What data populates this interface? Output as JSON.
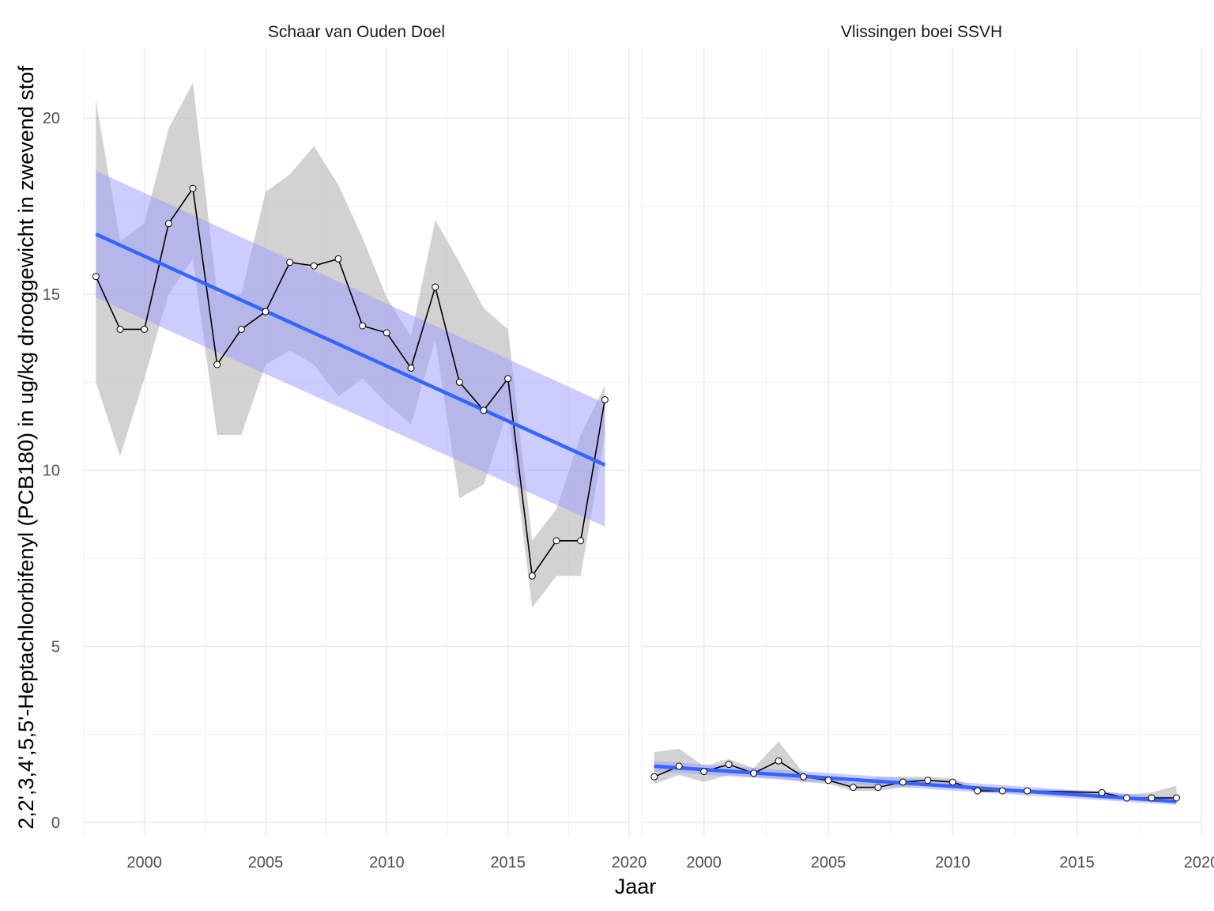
{
  "chart_data": {
    "type": "line",
    "xlabel": "Jaar",
    "ylabel": "2,2',3,4',5,5'-Heptachloorbifenyl (PCB180) in ug/kg drooggewicht in zwevend stof",
    "xlim": [
      1997.5,
      2020
    ],
    "ylim": [
      -0.4,
      22
    ],
    "x_ticks": [
      2000,
      2005,
      2010,
      2015,
      2020
    ],
    "y_ticks": [
      0,
      5,
      10,
      15,
      20
    ],
    "grid": true,
    "colors": {
      "observed_line": "#000000",
      "points": "#ffffff",
      "range_band": "#bdbdbd",
      "trend_line": "#3366ff",
      "trend_band": "#9999ff"
    },
    "panels": [
      {
        "title": "Schaar van Ouden Doel",
        "x": [
          1998,
          1999,
          2000,
          2001,
          2002,
          2003,
          2004,
          2005,
          2006,
          2007,
          2008,
          2009,
          2010,
          2011,
          2012,
          2013,
          2014,
          2015,
          2016,
          2017,
          2018,
          2019
        ],
        "values": [
          15.5,
          14.0,
          14.0,
          17.0,
          18.0,
          13.0,
          14.0,
          14.5,
          15.9,
          15.8,
          16.0,
          14.1,
          13.9,
          12.9,
          15.2,
          12.5,
          11.7,
          12.6,
          7.0,
          8.0,
          8.0,
          12.0
        ],
        "range_upper": [
          20.5,
          16.5,
          17.0,
          19.7,
          21.0,
          15.0,
          15.0,
          17.9,
          18.4,
          19.2,
          18.1,
          16.6,
          14.9,
          13.8,
          17.1,
          15.9,
          14.6,
          14.0,
          8.0,
          8.9,
          11.0,
          12.4
        ],
        "range_lower": [
          12.5,
          10.4,
          12.6,
          15.0,
          16.0,
          11.0,
          11.0,
          13.0,
          13.4,
          13.0,
          12.1,
          12.6,
          11.9,
          11.3,
          13.7,
          9.2,
          9.6,
          11.7,
          6.1,
          7.0,
          7.0,
          11.0
        ],
        "trend": {
          "x": [
            1998,
            2019
          ],
          "y": [
            16.7,
            10.15
          ]
        },
        "trend_upper": [
          18.5,
          11.9
        ],
        "trend_lower": [
          14.9,
          8.4
        ]
      },
      {
        "title": "Vlissingen boei SSVH",
        "x": [
          1998,
          1999,
          2000,
          2001,
          2002,
          2003,
          2004,
          2005,
          2006,
          2007,
          2008,
          2009,
          2010,
          2011,
          2012,
          2013,
          2016,
          2017,
          2018,
          2019
        ],
        "values": [
          1.3,
          1.6,
          1.45,
          1.65,
          1.4,
          1.75,
          1.3,
          1.2,
          1.0,
          1.0,
          1.15,
          1.2,
          1.15,
          0.9,
          0.9,
          0.9,
          0.85,
          0.7,
          0.7,
          0.7
        ],
        "range_upper": [
          2.0,
          2.1,
          1.6,
          1.8,
          1.55,
          2.3,
          1.4,
          1.3,
          1.1,
          1.3,
          1.3,
          1.3,
          1.25,
          1.0,
          0.95,
          0.95,
          0.9,
          0.8,
          0.85,
          1.05
        ],
        "range_lower": [
          1.1,
          1.35,
          1.15,
          1.35,
          1.3,
          1.25,
          1.15,
          1.1,
          0.9,
          0.9,
          1.0,
          1.1,
          1.05,
          0.85,
          0.85,
          0.85,
          0.8,
          0.65,
          0.65,
          0.6
        ],
        "trend": {
          "x": [
            1998,
            2019
          ],
          "y": [
            1.6,
            0.6
          ]
        },
        "trend_upper": [
          1.75,
          0.72
        ],
        "trend_lower": [
          1.45,
          0.5
        ]
      }
    ]
  }
}
